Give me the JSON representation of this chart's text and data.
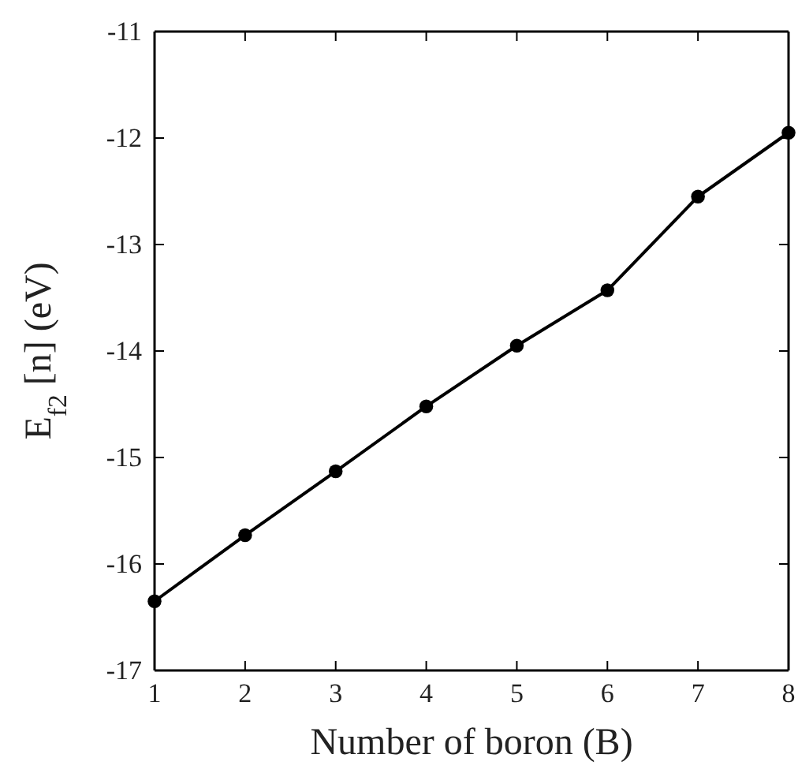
{
  "chart_data": {
    "type": "line",
    "xlabel": "Number of boron (B)",
    "ylabel": "E$_{f2}$ [n] (eV)",
    "x": [
      1,
      2,
      3,
      4,
      5,
      6,
      7,
      8
    ],
    "series": [
      {
        "color": "#000000",
        "values": [
          -16.35,
          -15.73,
          -15.13,
          -14.52,
          -13.95,
          -13.43,
          -12.55,
          -11.95
        ]
      }
    ],
    "xlim": [
      1,
      8
    ],
    "xticks": [
      1,
      2,
      3,
      4,
      5,
      6,
      7,
      8
    ],
    "ylim": [
      -17,
      -11
    ],
    "yticks": [
      -17,
      -16,
      -15,
      -14,
      -13,
      -12,
      -11
    ],
    "marker": "circle",
    "line_style": "solid",
    "grid": false
  }
}
